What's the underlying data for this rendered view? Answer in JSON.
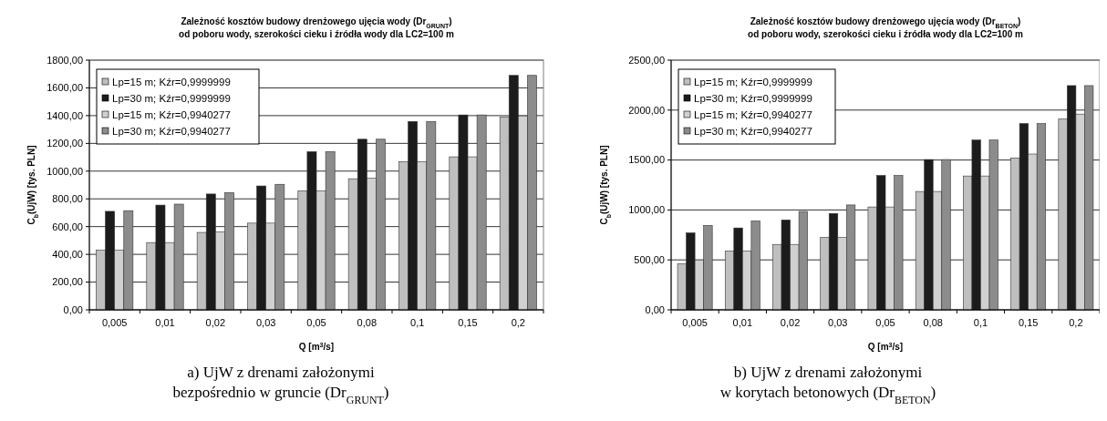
{
  "chart_data": [
    {
      "type": "bar",
      "title": "Zależność kosztów budowy drenżowego ujęcia wody (Dr$_{GRUNT}$)\nod poboru wody, szerokości cieku i źródła wody dla LC2=100 m",
      "xlabel": "Q [m$^{3}$/s]",
      "ylabel": "C$_{b}$(UjW) [tys. PLN]",
      "categories": [
        "0,005",
        "0,01",
        "0,02",
        "0,03",
        "0,05",
        "0,08",
        "0,1",
        "0,15",
        "0,2"
      ],
      "series": [
        {
          "name": "Lp=15 m; Kźr=0,9999999",
          "color": "#bfbfbf",
          "values": [
            430,
            485,
            558,
            625,
            858,
            945,
            1068,
            1103,
            1390
          ]
        },
        {
          "name": "Lp=30 m; Kźr=0,9999999",
          "color": "#1c1c1c",
          "values": [
            710,
            755,
            835,
            893,
            1140,
            1230,
            1358,
            1405,
            1690
          ]
        },
        {
          "name": "Lp=15 m; Kźr=0,9940277",
          "color": "#d0d0d0",
          "values": [
            430,
            485,
            562,
            625,
            858,
            948,
            1068,
            1103,
            1398
          ]
        },
        {
          "name": "Lp=30 m; Kźr=0,9940277",
          "color": "#8c8c8c",
          "values": [
            715,
            762,
            845,
            905,
            1140,
            1230,
            1358,
            1405,
            1690
          ]
        }
      ],
      "ylim": [
        0,
        1800
      ],
      "yticks": [
        {
          "value": 0,
          "label": "0,00"
        },
        {
          "value": 200,
          "label": "200,00"
        },
        {
          "value": 400,
          "label": "400,00"
        },
        {
          "value": 600,
          "label": "600,00"
        },
        {
          "value": 800,
          "label": "800,00"
        },
        {
          "value": 1000,
          "label": "1000,00"
        },
        {
          "value": 1200,
          "label": "1200,00"
        },
        {
          "value": 1400,
          "label": "1400,00"
        },
        {
          "value": 1600,
          "label": "1600,00"
        },
        {
          "value": 1800,
          "label": "1800,00"
        }
      ],
      "grid": "y",
      "legend": "top left",
      "annotations": [
        "a) UjW z drenami założonymi\nbezpośrednio w gruncie (Dr$_{GRUNT}$)"
      ]
    },
    {
      "type": "bar",
      "title": "Zależność kosztów budowy drenżowego ujęcia wody (Dr$_{BETON}$)\nod poboru wody, szerokości cieku i źródła wody dla LC2=100 m",
      "xlabel": "Q [m$^{3}$/s]",
      "ylabel": "C$_{b}$(UjW) [tys. PLN]",
      "categories": [
        "0,005",
        "0,01",
        "0,02",
        "0,03",
        "0,05",
        "0,08",
        "0,1",
        "0,15",
        "0,2"
      ],
      "series": [
        {
          "name": "Lp=15 m; Kźr=0,9999999",
          "color": "#bfbfbf",
          "values": [
            460,
            590,
            655,
            725,
            1030,
            1185,
            1340,
            1520,
            1910
          ]
        },
        {
          "name": "Lp=30 m; Kźr=0,9999999",
          "color": "#1c1c1c",
          "values": [
            770,
            820,
            900,
            965,
            1345,
            1505,
            1700,
            1865,
            2245
          ]
        },
        {
          "name": "Lp=15 m; Kźr=0,9940277",
          "color": "#d0d0d0",
          "values": [
            500,
            590,
            655,
            725,
            1030,
            1185,
            1340,
            1560,
            1960
          ]
        },
        {
          "name": "Lp=30 m; Kźr=0,9940277",
          "color": "#8c8c8c",
          "values": [
            845,
            890,
            985,
            1050,
            1345,
            1505,
            1700,
            1865,
            2245
          ]
        }
      ],
      "ylim": [
        0,
        2500
      ],
      "yticks": [
        {
          "value": 0,
          "label": "0,00"
        },
        {
          "value": 500,
          "label": "500,00"
        },
        {
          "value": 1000,
          "label": "1000,00"
        },
        {
          "value": 1500,
          "label": "1500,00"
        },
        {
          "value": 2000,
          "label": "2000,00"
        },
        {
          "value": 2500,
          "label": "2500,00"
        }
      ],
      "grid": "y",
      "legend": "top left",
      "annotations": [
        "b) UjW z drenami założonymi\nw korytach betonowych (Dr$_{BETON}$)"
      ]
    }
  ]
}
